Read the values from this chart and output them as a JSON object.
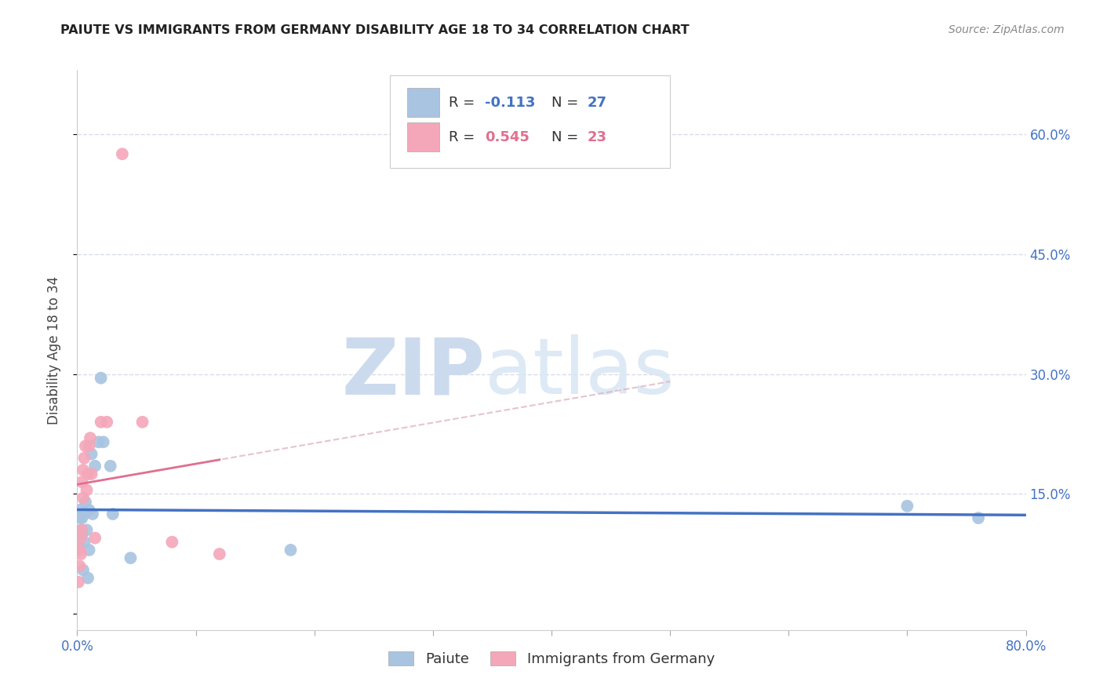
{
  "title": "PAIUTE VS IMMIGRANTS FROM GERMANY DISABILITY AGE 18 TO 34 CORRELATION CHART",
  "source": "Source: ZipAtlas.com",
  "ylabel": "Disability Age 18 to 34",
  "xlim": [
    0.0,
    0.8
  ],
  "ylim": [
    -0.02,
    0.68
  ],
  "paiute_color": "#a8c4e0",
  "germany_color": "#f4a7b9",
  "paiute_line_color": "#4472c4",
  "germany_line_color": "#e07090",
  "germany_dashed_color": "#ddb0c0",
  "background_color": "#ffffff",
  "grid_color": "#d8dce8",
  "paiute_x": [
    0.001,
    0.002,
    0.003,
    0.003,
    0.004,
    0.004,
    0.005,
    0.005,
    0.006,
    0.006,
    0.007,
    0.008,
    0.009,
    0.01,
    0.01,
    0.012,
    0.013,
    0.015,
    0.018,
    0.02,
    0.022,
    0.028,
    0.03,
    0.045,
    0.18,
    0.7,
    0.76
  ],
  "paiute_y": [
    0.085,
    0.13,
    0.12,
    0.105,
    0.12,
    0.1,
    0.125,
    0.055,
    0.09,
    0.125,
    0.14,
    0.105,
    0.045,
    0.08,
    0.13,
    0.2,
    0.125,
    0.185,
    0.215,
    0.295,
    0.215,
    0.185,
    0.125,
    0.07,
    0.08,
    0.135,
    0.12
  ],
  "germany_x": [
    0.001,
    0.002,
    0.002,
    0.003,
    0.003,
    0.004,
    0.004,
    0.005,
    0.005,
    0.006,
    0.007,
    0.008,
    0.009,
    0.01,
    0.011,
    0.012,
    0.015,
    0.02,
    0.025,
    0.038,
    0.055,
    0.08,
    0.12
  ],
  "germany_y": [
    0.04,
    0.08,
    0.06,
    0.095,
    0.075,
    0.105,
    0.165,
    0.145,
    0.18,
    0.195,
    0.21,
    0.155,
    0.175,
    0.21,
    0.22,
    0.175,
    0.095,
    0.24,
    0.24,
    0.575,
    0.24,
    0.09,
    0.075
  ],
  "legend_r1": "-0.113",
  "legend_n1": "27",
  "legend_r2": "0.545",
  "legend_n2": "23",
  "ytick_vals": [
    0.0,
    0.15,
    0.3,
    0.45,
    0.6
  ],
  "right_ytick_labels": [
    "15.0%",
    "30.0%",
    "45.0%",
    "60.0%"
  ]
}
